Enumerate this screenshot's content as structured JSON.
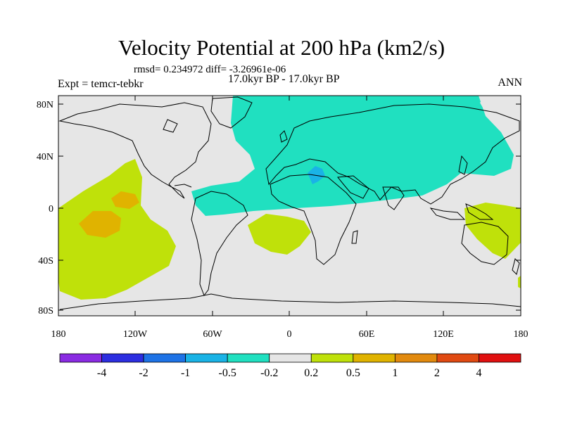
{
  "title": "Velocity Potential at 200 hPa (km2/s)",
  "stats": "rmsd= 0.234972 diff= -3.26961e-06",
  "experiment": "Expt = temcr-tebkr",
  "period": "17.0kyr BP - 17.0kyr BP",
  "season": "ANN",
  "lat_ticks": [
    "80N",
    "40N",
    "0",
    "40S",
    "80S"
  ],
  "lon_ticks": [
    "180",
    "120W",
    "60W",
    "0",
    "60E",
    "120E",
    "180"
  ],
  "colorbar": {
    "colors": [
      "#8a2be2",
      "#2c2ee0",
      "#1e73e6",
      "#1ab3e6",
      "#20e0c0",
      "#e6e6e6",
      "#bfe10a",
      "#e0b300",
      "#e28a0e",
      "#e04a12",
      "#e01010"
    ],
    "labels": [
      "-4",
      "-2",
      "-1",
      "-0.5",
      "-0.2",
      "0.2",
      "0.5",
      "1",
      "2",
      "4"
    ]
  },
  "colors": {
    "background": "#e6e6e6",
    "negative_fill": "#20e0c0",
    "negative_deep_fill": "#1ab3e6",
    "positive_fill": "#bfe10a",
    "positive_strong_fill": "#e0b300",
    "positive_peak_fill": "#e28a0e"
  }
}
